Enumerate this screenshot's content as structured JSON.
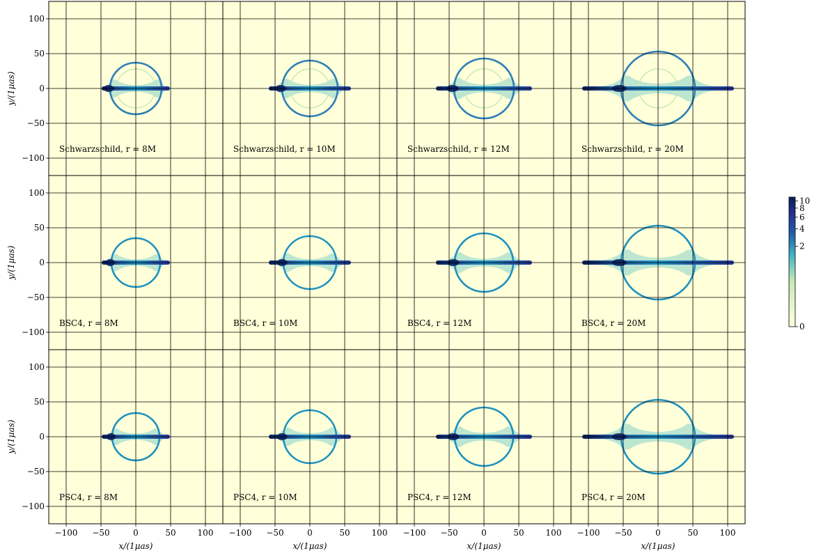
{
  "chart_data": {
    "type": "heatmap",
    "description_grid": "3x4",
    "xlabel": "x/(1μas)",
    "ylabel": "y/(1μas)",
    "xlim": [
      -125,
      125
    ],
    "ylim": [
      -125,
      125
    ],
    "xticks": [
      -100,
      -50,
      0,
      50,
      100
    ],
    "yticks": [
      -100,
      -50,
      0,
      50,
      100
    ],
    "grid": true,
    "background_color": "#ffffd9",
    "colorbar": {
      "scale": "symlog",
      "ticks": [
        "0",
        "2",
        "4",
        "6",
        "8",
        "10"
      ],
      "range": [
        0,
        10
      ],
      "colormap": "YlGnBu"
    },
    "panels": [
      {
        "row": 0,
        "col": 0,
        "label": "Schwarzschild, r = 8M",
        "ring_radius": 37,
        "ring_shift": 0,
        "disk_half_width": 49,
        "inner_ring_radius": 28
      },
      {
        "row": 0,
        "col": 1,
        "label": "Schwarzschild, r = 10M",
        "ring_radius": 40,
        "ring_shift": 0,
        "disk_half_width": 59,
        "inner_ring_radius": 28
      },
      {
        "row": 0,
        "col": 2,
        "label": "Schwarzschild, r = 12M",
        "ring_radius": 43,
        "ring_shift": 0,
        "disk_half_width": 69,
        "inner_ring_radius": 28
      },
      {
        "row": 0,
        "col": 3,
        "label": "Schwarzschild, r = 20M",
        "ring_radius": 53,
        "ring_shift": 0,
        "disk_half_width": 109,
        "inner_ring_radius": 28
      },
      {
        "row": 1,
        "col": 0,
        "label": "BSC4, r = 8M",
        "ring_radius": 35,
        "ring_shift": 0,
        "disk_half_width": 49,
        "inner_ring_radius": null
      },
      {
        "row": 1,
        "col": 1,
        "label": "BSC4, r = 10M",
        "ring_radius": 38,
        "ring_shift": 0,
        "disk_half_width": 59,
        "inner_ring_radius": null
      },
      {
        "row": 1,
        "col": 2,
        "label": "BSC4, r = 12M",
        "ring_radius": 42,
        "ring_shift": 0,
        "disk_half_width": 69,
        "inner_ring_radius": null
      },
      {
        "row": 1,
        "col": 3,
        "label": "BSC4, r = 20M",
        "ring_radius": 53,
        "ring_shift": 0,
        "disk_half_width": 109,
        "inner_ring_radius": null
      },
      {
        "row": 2,
        "col": 0,
        "label": "PSC4, r = 8M",
        "ring_radius": 34,
        "ring_shift": 0,
        "disk_half_width": 49,
        "inner_ring_radius": null
      },
      {
        "row": 2,
        "col": 1,
        "label": "PSC4, r = 10M",
        "ring_radius": 38,
        "ring_shift": 0,
        "disk_half_width": 59,
        "inner_ring_radius": null
      },
      {
        "row": 2,
        "col": 2,
        "label": "PSC4, r = 12M",
        "ring_radius": 42,
        "ring_shift": 0,
        "disk_half_width": 69,
        "inner_ring_radius": null
      },
      {
        "row": 2,
        "col": 3,
        "label": "PSC4, r = 20M",
        "ring_radius": 53,
        "ring_shift": 0,
        "disk_half_width": 109,
        "inner_ring_radius": null
      }
    ]
  }
}
